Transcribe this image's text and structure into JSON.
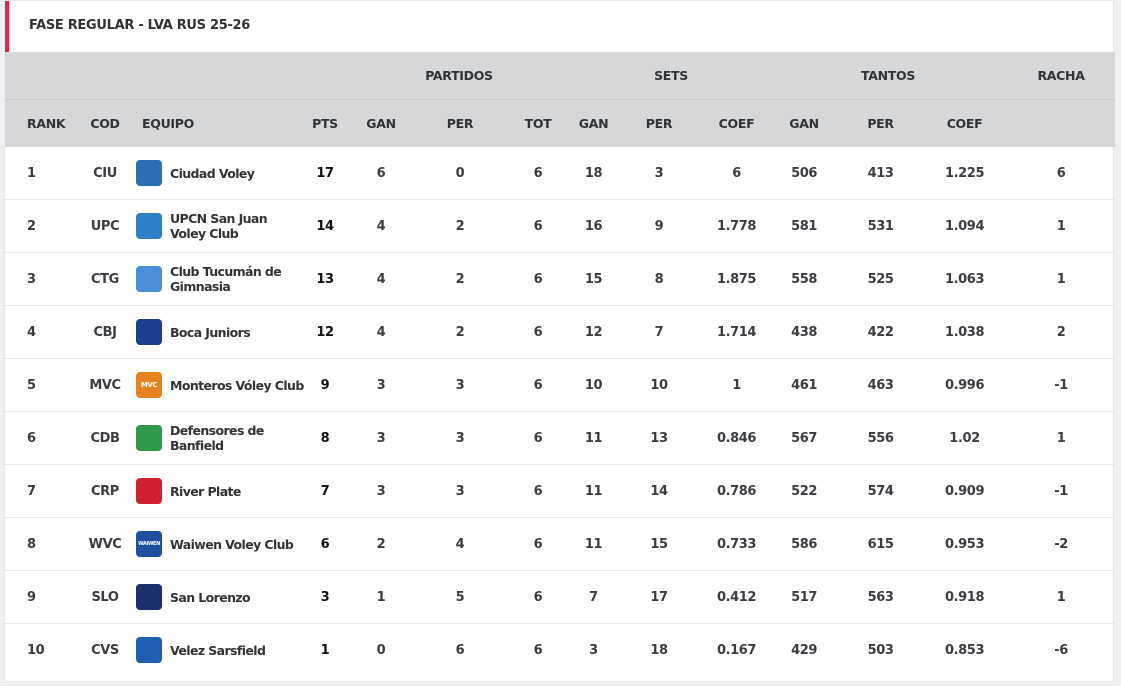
{
  "title": "FASE REGULAR - LVA RUS 25-26",
  "group_headers": {
    "partidos": "PARTIDOS",
    "sets": "SETS",
    "tantos": "TANTOS",
    "racha": "RACHA"
  },
  "columns": [
    "RANK",
    "COD",
    "EQUIPO",
    "PTS",
    "GAN",
    "PER",
    "TOT",
    "GAN",
    "PER",
    "COEF",
    "GAN",
    "PER",
    "COEF"
  ],
  "colors": {
    "accent": "#e3264e",
    "header_bg": "#d6d7d9"
  },
  "rows": [
    {
      "rank": "1",
      "cod": "CIU",
      "team": "Ciudad Voley",
      "logo_icon": "ciudad-voley-logo-icon",
      "logo_color": "#2a6fb0",
      "logo_text": "",
      "pts": "17",
      "pgan": "6",
      "pper": "0",
      "ptot": "6",
      "sgan": "18",
      "sper": "3",
      "scoef": "6",
      "tgan": "506",
      "tper": "413",
      "tcoef": "1.225",
      "racha": "6"
    },
    {
      "rank": "2",
      "cod": "UPC",
      "team": "UPCN San Juan Voley Club",
      "logo_icon": "upcn-logo-icon",
      "logo_color": "#2f7fc8",
      "logo_text": "",
      "pts": "14",
      "pgan": "4",
      "pper": "2",
      "ptot": "6",
      "sgan": "16",
      "sper": "9",
      "scoef": "1.778",
      "tgan": "581",
      "tper": "531",
      "tcoef": "1.094",
      "racha": "1"
    },
    {
      "rank": "3",
      "cod": "CTG",
      "team": "Club Tucumán de Gimnasia",
      "logo_icon": "ctg-logo-icon",
      "logo_color": "#4a90d9",
      "logo_text": "",
      "pts": "13",
      "pgan": "4",
      "pper": "2",
      "ptot": "6",
      "sgan": "15",
      "sper": "8",
      "scoef": "1.875",
      "tgan": "558",
      "tper": "525",
      "tcoef": "1.063",
      "racha": "1"
    },
    {
      "rank": "4",
      "cod": "CBJ",
      "team": "Boca Juniors",
      "logo_icon": "boca-logo-icon",
      "logo_color": "#1b3f8f",
      "logo_text": "",
      "pts": "12",
      "pgan": "4",
      "pper": "2",
      "ptot": "6",
      "sgan": "12",
      "sper": "7",
      "scoef": "1.714",
      "tgan": "438",
      "tper": "422",
      "tcoef": "1.038",
      "racha": "2"
    },
    {
      "rank": "5",
      "cod": "MVC",
      "team": "Monteros Vóley Club",
      "logo_icon": "mvc-logo-icon",
      "logo_color": "#e8821e",
      "logo_text": "MVC",
      "pts": "9",
      "pgan": "3",
      "pper": "3",
      "ptot": "6",
      "sgan": "10",
      "sper": "10",
      "scoef": "1",
      "tgan": "461",
      "tper": "463",
      "tcoef": "0.996",
      "racha": "-1"
    },
    {
      "rank": "6",
      "cod": "CDB",
      "team": "Defensores de Banfield",
      "logo_icon": "cdb-logo-icon",
      "logo_color": "#2e9a4a",
      "logo_text": "",
      "pts": "8",
      "pgan": "3",
      "pper": "3",
      "ptot": "6",
      "sgan": "11",
      "sper": "13",
      "scoef": "0.846",
      "tgan": "567",
      "tper": "556",
      "tcoef": "1.02",
      "racha": "1"
    },
    {
      "rank": "7",
      "cod": "CRP",
      "team": "River Plate",
      "logo_icon": "river-logo-icon",
      "logo_color": "#d32030",
      "logo_text": "",
      "pts": "7",
      "pgan": "3",
      "pper": "3",
      "ptot": "6",
      "sgan": "11",
      "sper": "14",
      "scoef": "0.786",
      "tgan": "522",
      "tper": "574",
      "tcoef": "0.909",
      "racha": "-1"
    },
    {
      "rank": "8",
      "cod": "WVC",
      "team": "Waiwen Voley Club",
      "logo_icon": "waiwen-logo-icon",
      "logo_color": "#1f4fa0",
      "logo_text": "WAIWEN",
      "pts": "6",
      "pgan": "2",
      "pper": "4",
      "ptot": "6",
      "sgan": "11",
      "sper": "15",
      "scoef": "0.733",
      "tgan": "586",
      "tper": "615",
      "tcoef": "0.953",
      "racha": "-2"
    },
    {
      "rank": "9",
      "cod": "SLO",
      "team": "San Lorenzo",
      "logo_icon": "san-lorenzo-logo-icon",
      "logo_color": "#1c2f6b",
      "logo_text": "",
      "pts": "3",
      "pgan": "1",
      "pper": "5",
      "ptot": "6",
      "sgan": "7",
      "sper": "17",
      "scoef": "0.412",
      "tgan": "517",
      "tper": "563",
      "tcoef": "0.918",
      "racha": "1"
    },
    {
      "rank": "10",
      "cod": "CVS",
      "team": "Velez Sarsfield",
      "logo_icon": "velez-logo-icon",
      "logo_color": "#1f5fb5",
      "logo_text": "",
      "pts": "1",
      "pgan": "0",
      "pper": "6",
      "ptot": "6",
      "sgan": "3",
      "sper": "18",
      "scoef": "0.167",
      "tgan": "429",
      "tper": "503",
      "tcoef": "0.853",
      "racha": "-6"
    }
  ]
}
